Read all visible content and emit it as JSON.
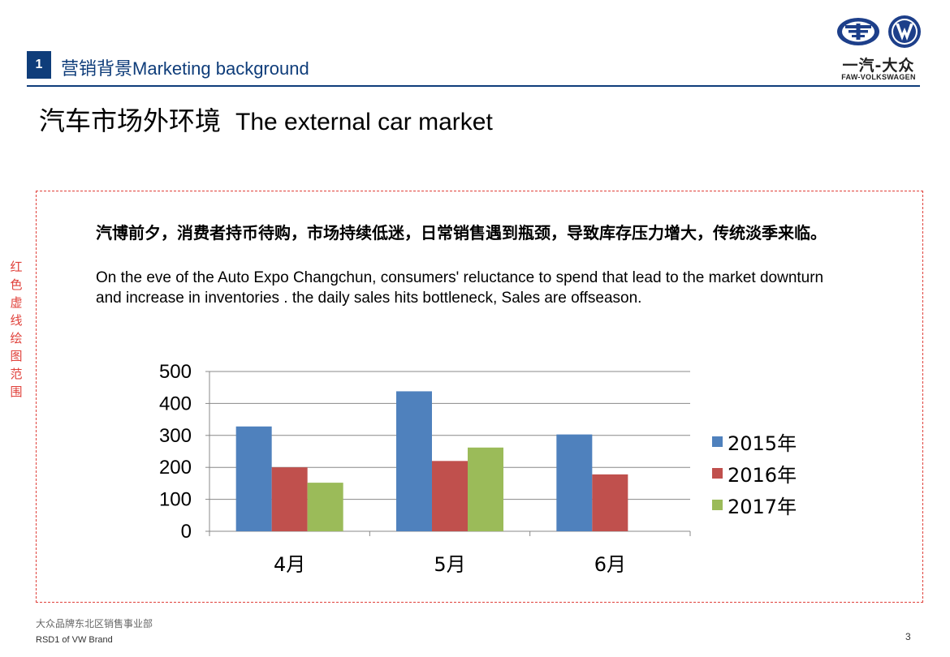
{
  "section": {
    "number": "1",
    "title_cn": "营销背景",
    "title_en": "Marketing background"
  },
  "logo": {
    "text_cn": "一汽-大众",
    "text_en": "FAW-VOLKSWAGEN",
    "icons": [
      "faw-icon",
      "vw-icon"
    ]
  },
  "page": {
    "title_cn": "汽车市场外环境",
    "title_en": "The external car market",
    "side_note": "红色虚线绘图范围",
    "paragraph_cn": "汽博前夕，消费者持币待购，市场持续低迷，日常销售遇到瓶颈，导致库存压力增大，传统淡季来临。",
    "paragraph_en": "On the eve of the Auto Expo Changchun, consumers' reluctance to spend that lead to the market downturn and increase in inventories . the daily sales hits bottleneck, Sales are offseason."
  },
  "footer": {
    "dept_cn": "大众品牌东北区销售事业部",
    "dept_en": "RSD1 of VW Brand",
    "page_number": "3"
  },
  "colors": {
    "brand_blue": "#0f3d7a",
    "dashed_frame": "#e0403a"
  },
  "chart_data": {
    "type": "bar",
    "categories": [
      "4月",
      "5月",
      "6月"
    ],
    "series": [
      {
        "name": "2015年",
        "color": "#4f81bd",
        "values": [
          328,
          438,
          303
        ]
      },
      {
        "name": "2016年",
        "color": "#c0504d",
        "values": [
          200,
          220,
          178
        ]
      },
      {
        "name": "2017年",
        "color": "#9bbb59",
        "values": [
          152,
          262,
          null
        ]
      }
    ],
    "ylim": [
      0,
      500
    ],
    "yticks": [
      0,
      100,
      200,
      300,
      400,
      500
    ],
    "grid": true,
    "legend": "right"
  }
}
